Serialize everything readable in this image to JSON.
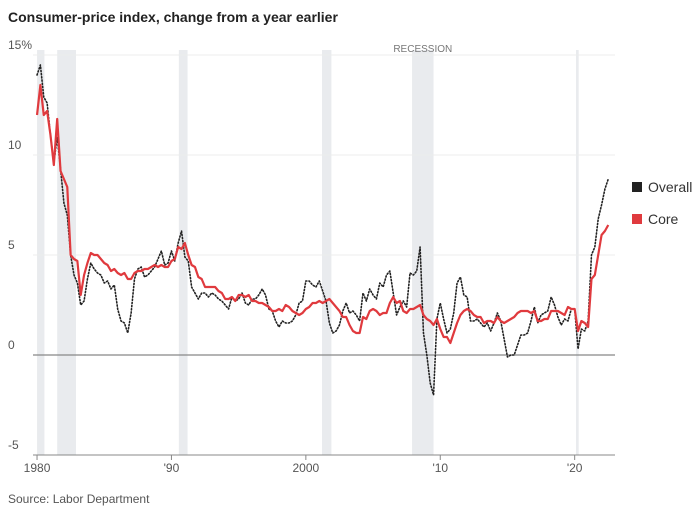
{
  "chart_data": {
    "type": "line",
    "title": "Consumer-price index, change from a year earlier",
    "source": "Source: Labor Department",
    "recession_label": "RECESSION",
    "recessions": [
      [
        1980.0,
        1980.55
      ],
      [
        1981.5,
        1982.9
      ],
      [
        1990.55,
        1991.2
      ],
      [
        2001.2,
        2001.9
      ],
      [
        2007.9,
        2009.5
      ],
      [
        2020.1,
        2020.3
      ]
    ],
    "x": [
      1980,
      1980.25,
      1980.5,
      1980.75,
      1981,
      1981.25,
      1981.5,
      1981.75,
      1982,
      1982.25,
      1982.5,
      1982.75,
      1983,
      1983.25,
      1983.5,
      1983.75,
      1984,
      1984.25,
      1984.5,
      1984.75,
      1985,
      1985.25,
      1985.5,
      1985.75,
      1986,
      1986.25,
      1986.5,
      1986.75,
      1987,
      1987.25,
      1987.5,
      1987.75,
      1988,
      1988.25,
      1988.5,
      1988.75,
      1989,
      1989.25,
      1989.5,
      1989.75,
      1990,
      1990.25,
      1990.5,
      1990.75,
      1991,
      1991.25,
      1991.5,
      1991.75,
      1992,
      1992.25,
      1992.5,
      1992.75,
      1993,
      1993.25,
      1993.5,
      1993.75,
      1994,
      1994.25,
      1994.5,
      1994.75,
      1995,
      1995.25,
      1995.5,
      1995.75,
      1996,
      1996.25,
      1996.5,
      1996.75,
      1997,
      1997.25,
      1997.5,
      1997.75,
      1998,
      1998.25,
      1998.5,
      1998.75,
      1999,
      1999.25,
      1999.5,
      1999.75,
      2000,
      2000.25,
      2000.5,
      2000.75,
      2001,
      2001.25,
      2001.5,
      2001.75,
      2002,
      2002.25,
      2002.5,
      2002.75,
      2003,
      2003.25,
      2003.5,
      2003.75,
      2004,
      2004.25,
      2004.5,
      2004.75,
      2005,
      2005.25,
      2005.5,
      2005.75,
      2006,
      2006.25,
      2006.5,
      2006.75,
      2007,
      2007.25,
      2007.5,
      2007.75,
      2008,
      2008.25,
      2008.5,
      2008.75,
      2009,
      2009.25,
      2009.5,
      2009.75,
      2010,
      2010.25,
      2010.5,
      2010.75,
      2011,
      2011.25,
      2011.5,
      2011.75,
      2012,
      2012.25,
      2012.5,
      2012.75,
      2013,
      2013.25,
      2013.5,
      2013.75,
      2014,
      2014.25,
      2014.5,
      2014.75,
      2015,
      2015.25,
      2015.5,
      2015.75,
      2016,
      2016.25,
      2016.5,
      2016.75,
      2017,
      2017.25,
      2017.5,
      2017.75,
      2018,
      2018.25,
      2018.5,
      2018.75,
      2019,
      2019.25,
      2019.5,
      2019.75,
      2020,
      2020.25,
      2020.5,
      2020.75,
      2021,
      2021.25,
      2021.5,
      2021.75,
      2022,
      2022.25,
      2022.5
    ],
    "series": [
      {
        "name": "Overall",
        "color": "#222222",
        "line_style": "dotted",
        "values": [
          14.0,
          14.5,
          12.9,
          12.6,
          11.0,
          9.6,
          10.9,
          9.3,
          7.6,
          7.0,
          5.0,
          4.0,
          3.6,
          2.5,
          2.7,
          3.8,
          4.6,
          4.3,
          4.1,
          4.0,
          3.6,
          3.7,
          3.3,
          3.5,
          2.3,
          1.7,
          1.6,
          1.1,
          2.1,
          3.8,
          4.3,
          4.4,
          3.9,
          4.0,
          4.2,
          4.4,
          4.8,
          5.2,
          4.5,
          4.6,
          5.2,
          4.7,
          5.6,
          6.2,
          4.9,
          4.7,
          3.4,
          3.1,
          2.8,
          3.1,
          3.1,
          2.9,
          3.1,
          3.0,
          2.8,
          2.7,
          2.5,
          2.3,
          2.9,
          2.7,
          2.8,
          3.1,
          2.6,
          2.5,
          2.8,
          2.8,
          3.0,
          3.3,
          3.0,
          2.3,
          2.2,
          1.7,
          1.4,
          1.7,
          1.6,
          1.6,
          1.7,
          2.0,
          2.6,
          2.7,
          3.7,
          3.7,
          3.5,
          3.4,
          3.7,
          3.2,
          2.7,
          1.6,
          1.1,
          1.2,
          1.5,
          2.2,
          2.6,
          2.1,
          2.2,
          2.0,
          1.7,
          3.1,
          2.7,
          3.3,
          3.0,
          2.8,
          3.6,
          3.4,
          4.0,
          4.2,
          3.1,
          2.0,
          2.4,
          2.7,
          2.4,
          4.1,
          4.0,
          4.2,
          5.4,
          1.1,
          0.0,
          -1.4,
          -2.0,
          1.8,
          2.6,
          1.8,
          1.1,
          1.3,
          2.1,
          3.6,
          3.9,
          3.0,
          2.9,
          1.7,
          1.7,
          1.8,
          1.6,
          1.4,
          1.6,
          1.2,
          1.6,
          2.1,
          1.7,
          0.8,
          -0.1,
          0.0,
          0.0,
          0.5,
          1.0,
          1.0,
          1.1,
          1.7,
          2.4,
          1.6,
          2.0,
          2.1,
          2.2,
          2.9,
          2.5,
          1.9,
          1.5,
          1.8,
          1.7,
          2.3,
          2.3,
          0.3,
          1.3,
          1.2,
          1.7,
          5.0,
          5.4,
          6.8,
          7.5,
          8.3,
          8.8
        ]
      },
      {
        "name": "Core",
        "color": "#e03a3e",
        "line_style": "solid",
        "values": [
          12.0,
          13.5,
          12.0,
          12.2,
          11.0,
          9.5,
          11.8,
          9.2,
          8.8,
          8.4,
          5.0,
          4.8,
          4.7,
          3.0,
          4.0,
          4.6,
          5.1,
          5.0,
          5.0,
          4.8,
          4.6,
          4.5,
          4.2,
          4.3,
          4.1,
          4.0,
          4.1,
          3.8,
          3.8,
          4.1,
          4.2,
          4.2,
          4.3,
          4.3,
          4.4,
          4.5,
          4.4,
          4.5,
          4.4,
          4.4,
          4.7,
          4.8,
          5.4,
          5.3,
          5.6,
          5.0,
          4.5,
          4.4,
          3.9,
          3.8,
          3.4,
          3.4,
          3.4,
          3.4,
          3.2,
          3.1,
          2.8,
          2.8,
          2.9,
          2.7,
          3.0,
          3.0,
          2.9,
          3.0,
          2.7,
          2.7,
          2.6,
          2.6,
          2.5,
          2.4,
          2.2,
          2.2,
          2.3,
          2.2,
          2.5,
          2.4,
          2.2,
          2.1,
          2.0,
          2.1,
          2.3,
          2.4,
          2.6,
          2.6,
          2.7,
          2.6,
          2.7,
          2.8,
          2.6,
          2.4,
          2.2,
          1.9,
          1.9,
          1.5,
          1.2,
          1.1,
          1.1,
          1.9,
          1.8,
          2.2,
          2.3,
          2.2,
          2.0,
          2.1,
          2.1,
          2.6,
          2.9,
          2.6,
          2.7,
          2.2,
          2.1,
          2.3,
          2.3,
          2.4,
          2.5,
          2.0,
          1.8,
          1.7,
          1.5,
          1.8,
          1.3,
          0.9,
          0.9,
          0.6,
          1.1,
          1.6,
          2.0,
          2.2,
          2.3,
          2.2,
          2.0,
          1.9,
          1.9,
          1.6,
          1.7,
          1.7,
          1.6,
          1.9,
          1.7,
          1.6,
          1.7,
          1.8,
          1.9,
          2.1,
          2.2,
          2.2,
          2.2,
          2.1,
          2.2,
          1.7,
          1.7,
          1.8,
          1.8,
          2.2,
          2.2,
          2.2,
          2.1,
          2.0,
          2.4,
          2.3,
          2.3,
          1.2,
          1.7,
          1.6,
          1.4,
          3.8,
          4.0,
          5.0,
          6.0,
          6.2,
          6.5
        ]
      }
    ],
    "xlim": [
      1979.7,
      2023
    ],
    "xticks": [
      1980,
      {
        "value": 1990,
        "label": "'90"
      },
      2000,
      {
        "value": 2010,
        "label": "'10"
      },
      {
        "value": 2020,
        "label": "'20"
      }
    ],
    "ylim": [
      -5,
      15
    ],
    "yticks": [
      {
        "value": 15,
        "label": "15%"
      },
      10,
      5,
      0,
      -5
    ],
    "grid": true,
    "legend": "right"
  }
}
